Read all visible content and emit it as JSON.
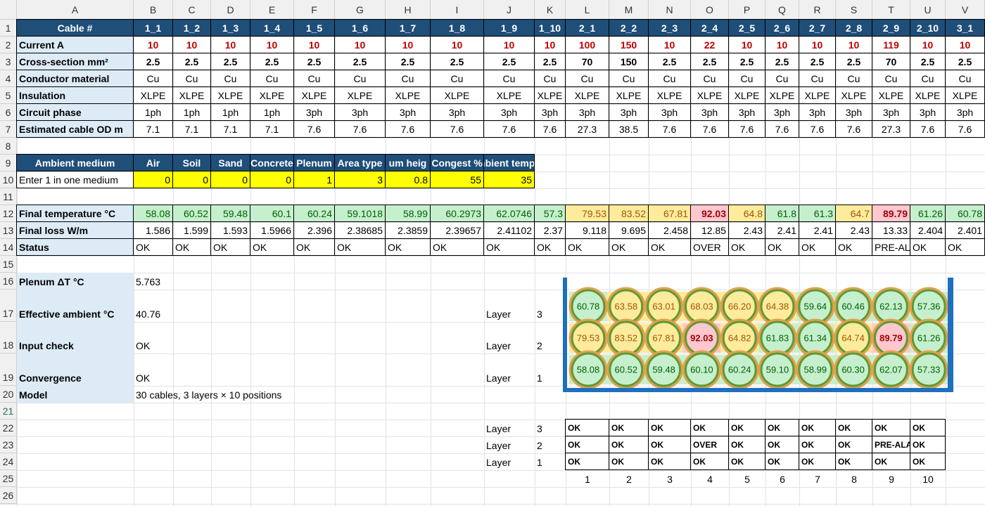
{
  "sheet": {
    "columns": [
      "A",
      "B",
      "C",
      "D",
      "E",
      "F",
      "G",
      "H",
      "I",
      "J",
      "K",
      "L",
      "M",
      "N",
      "O",
      "P",
      "Q",
      "R",
      "S",
      "T",
      "U",
      "V"
    ],
    "rows": [
      {
        "number": "1",
        "cells": {
          "A": "Cable #",
          "B": "1_1",
          "C": "1_2",
          "D": "1_3",
          "E": "1_4",
          "F": "1_5",
          "G": "1_6",
          "H": "1_7",
          "I": "1_8",
          "J": "1_9",
          "K": "1_10",
          "L": "2_1",
          "M": "2_2",
          "N": "2_3",
          "O": "2_4",
          "P": "2_5",
          "Q": "2_6",
          "R": "2_7",
          "S": "2_8",
          "T": "2_9",
          "U": "2_10",
          "V": "3_1"
        }
      },
      {
        "number": "2",
        "cells": {
          "A": "Current A",
          "B": "10",
          "C": "10",
          "D": "10",
          "E": "10",
          "F": "10",
          "G": "10",
          "H": "10",
          "I": "10",
          "J": "10",
          "K": "10",
          "L": "100",
          "M": "150",
          "N": "10",
          "O": "22",
          "P": "10",
          "Q": "10",
          "R": "10",
          "S": "10",
          "T": "119",
          "U": "10",
          "V": "10"
        }
      },
      {
        "number": "3",
        "cells": {
          "A": "Cross-section mm²",
          "B": "2.5",
          "C": "2.5",
          "D": "2.5",
          "E": "2.5",
          "F": "2.5",
          "G": "2.5",
          "H": "2.5",
          "I": "2.5",
          "J": "2.5",
          "K": "2.5",
          "L": "70",
          "M": "150",
          "N": "2.5",
          "O": "2.5",
          "P": "2.5",
          "Q": "2.5",
          "R": "2.5",
          "S": "2.5",
          "T": "70",
          "U": "2.5",
          "V": "2.5"
        }
      },
      {
        "number": "4",
        "cells": {
          "A": "Conductor material",
          "B": "Cu",
          "C": "Cu",
          "D": "Cu",
          "E": "Cu",
          "F": "Cu",
          "G": "Cu",
          "H": "Cu",
          "I": "Cu",
          "J": "Cu",
          "K": "Cu",
          "L": "Cu",
          "M": "Cu",
          "N": "Cu",
          "O": "Cu",
          "P": "Cu",
          "Q": "Cu",
          "R": "Cu",
          "S": "Cu",
          "T": "Cu",
          "U": "Cu",
          "V": "Cu"
        }
      },
      {
        "number": "5",
        "cells": {
          "A": "Insulation",
          "B": "XLPE",
          "C": "XLPE",
          "D": "XLPE",
          "E": "XLPE",
          "F": "XLPE",
          "G": "XLPE",
          "H": "XLPE",
          "I": "XLPE",
          "J": "XLPE",
          "K": "XLPE",
          "L": "XLPE",
          "M": "XLPE",
          "N": "XLPE",
          "O": "XLPE",
          "P": "XLPE",
          "Q": "XLPE",
          "R": "XLPE",
          "S": "XLPE",
          "T": "XLPE",
          "U": "XLPE",
          "V": "XLPE"
        }
      },
      {
        "number": "6",
        "cells": {
          "A": "Circuit phase",
          "B": "1ph",
          "C": "1ph",
          "D": "1ph",
          "E": "1ph",
          "F": "3ph",
          "G": "3ph",
          "H": "3ph",
          "I": "3ph",
          "J": "3ph",
          "K": "3ph",
          "L": "3ph",
          "M": "3ph",
          "N": "3ph",
          "O": "3ph",
          "P": "3ph",
          "Q": "3ph",
          "R": "3ph",
          "S": "3ph",
          "T": "3ph",
          "U": "3ph",
          "V": "3ph"
        }
      },
      {
        "number": "7",
        "cells": {
          "A": "Estimated cable OD m",
          "B": "7.1",
          "C": "7.1",
          "D": "7.1",
          "E": "7.1",
          "F": "7.6",
          "G": "7.6",
          "H": "7.6",
          "I": "7.6",
          "J": "7.6",
          "K": "7.6",
          "L": "27.3",
          "M": "38.5",
          "N": "7.6",
          "O": "7.6",
          "P": "7.6",
          "Q": "7.6",
          "R": "7.6",
          "S": "7.6",
          "T": "27.3",
          "U": "7.6",
          "V": "7.6"
        }
      },
      {
        "number": "8"
      },
      {
        "number": "9",
        "cells": {
          "A": "Ambient medium",
          "B": "Air",
          "C": "Soil",
          "D": "Sand",
          "E": "Concrete",
          "F": "Plenum",
          "G": "Area type",
          "H": "um heig",
          "I": "Congest %",
          "J": "mbient temp °"
        }
      },
      {
        "number": "10",
        "cells": {
          "A": "Enter 1 in one medium",
          "B": "0",
          "C": "0",
          "D": "0",
          "E": "0",
          "F": "1",
          "G": "3",
          "H": "0.8",
          "I": "55",
          "J": "35"
        }
      },
      {
        "number": "11"
      },
      {
        "number": "12",
        "cells": {
          "A": "Final temperature °C",
          "B": "58.08",
          "C": "60.52",
          "D": "59.48",
          "E": "60.1",
          "F": "60.24",
          "G": "59.1018",
          "H": "58.99",
          "I": "60.2973",
          "J": "62.0746",
          "K": "57.3",
          "L": "79.53",
          "M": "83.52",
          "N": "67.81",
          "O": "92.03",
          "P": "64.8",
          "Q": "61.8",
          "R": "61.3",
          "S": "64.7",
          "T": "89.79",
          "U": "61.26",
          "V": "60.78"
        }
      },
      {
        "number": "13",
        "cells": {
          "A": "Final loss W/m",
          "B": "1.586",
          "C": "1.599",
          "D": "1.593",
          "E": "1.5966",
          "F": "2.396",
          "G": "2.38685",
          "H": "2.3859",
          "I": "2.39657",
          "J": "2.41102",
          "K": "2.37",
          "L": "9.118",
          "M": "9.695",
          "N": "2.458",
          "O": "12.85",
          "P": "2.43",
          "Q": "2.41",
          "R": "2.41",
          "S": "2.43",
          "T": "13.33",
          "U": "2.404",
          "V": "2.401"
        }
      },
      {
        "number": "14",
        "cells": {
          "A": "Status",
          "B": "OK",
          "C": "OK",
          "D": "OK",
          "E": "OK",
          "F": "OK",
          "G": "OK",
          "H": "OK",
          "I": "OK",
          "J": "OK",
          "K": "OK",
          "L": "OK",
          "M": "OK",
          "N": "OK",
          "O": "OVER",
          "P": "OK",
          "Q": "OK",
          "R": "OK",
          "S": "OK",
          "T": "PRE-AL",
          "U": "OK",
          "V": "OK"
        }
      },
      {
        "number": "15"
      },
      {
        "number": "16",
        "cells": {
          "A": "Plenum ΔT °C",
          "B": "5.763"
        }
      },
      {
        "number": "17",
        "cells": {
          "A": "Effective ambient °C",
          "B": "40.76",
          "J": "Layer",
          "K": "3"
        }
      },
      {
        "number": "18",
        "cells": {
          "A": "Input check",
          "B": "OK",
          "J": "Layer",
          "K": "2"
        }
      },
      {
        "number": "19",
        "cells": {
          "A": "Convergence",
          "B": "OK",
          "J": "Layer",
          "K": "1"
        }
      },
      {
        "number": "20",
        "cells": {
          "A": "Model",
          "B": "30 cables, 3 layers × 10 positions"
        }
      },
      {
        "number": "21"
      },
      {
        "number": "22",
        "cells": {
          "J": "Layer",
          "K": "3",
          "L": "OK",
          "M": "OK",
          "N": "OK",
          "O": "OK",
          "P": "OK",
          "Q": "OK",
          "R": "OK",
          "S": "OK",
          "T": "OK",
          "U": "OK"
        }
      },
      {
        "number": "23",
        "cells": {
          "J": "Layer",
          "K": "2",
          "L": "OK",
          "M": "OK",
          "N": "OK",
          "O": "OVER",
          "P": "OK",
          "Q": "OK",
          "R": "OK",
          "S": "OK",
          "T": "PRE-ALA",
          "U": "OK"
        }
      },
      {
        "number": "24",
        "cells": {
          "J": "Layer",
          "K": "1",
          "L": "OK",
          "M": "OK",
          "N": "OK",
          "O": "OK",
          "P": "OK",
          "Q": "OK",
          "R": "OK",
          "S": "OK",
          "T": "OK",
          "U": "OK"
        }
      },
      {
        "number": "25",
        "cells": {
          "L": "1",
          "M": "2",
          "N": "3",
          "O": "4",
          "P": "5",
          "Q": "6",
          "R": "7",
          "S": "8",
          "T": "9",
          "U": "10"
        }
      },
      {
        "number": "26"
      }
    ]
  },
  "tray": {
    "layers": [
      {
        "values": [
          "60.78",
          "63.58",
          "63.01",
          "68.03",
          "66.20",
          "64.38",
          "59.64",
          "60.46",
          "62.13",
          "57.36"
        ],
        "fills": [
          "#c6efce",
          "#ffeb9c",
          "#ffeb9c",
          "#ffeb9c",
          "#ffeb9c",
          "#ffeb9c",
          "#c6efce",
          "#c6efce",
          "#c6efce",
          "#c6efce"
        ]
      },
      {
        "values": [
          "79.53",
          "83.52",
          "67.81",
          "92.03",
          "64.82",
          "61.83",
          "61.34",
          "64.74",
          "89.79",
          "61.26"
        ],
        "fills": [
          "#ffeb9c",
          "#ffeb9c",
          "#ffeb9c",
          "#ffc7ce",
          "#ffeb9c",
          "#c6efce",
          "#c6efce",
          "#ffeb9c",
          "#ffc7ce",
          "#c6efce"
        ]
      },
      {
        "values": [
          "58.08",
          "60.52",
          "59.48",
          "60.10",
          "60.24",
          "59.10",
          "58.99",
          "60.30",
          "62.07",
          "57.33"
        ],
        "fills": [
          "#c6efce",
          "#c6efce",
          "#c6efce",
          "#c6efce",
          "#c6efce",
          "#c6efce",
          "#c6efce",
          "#c6efce",
          "#c6efce",
          "#c6efce"
        ]
      }
    ]
  }
}
